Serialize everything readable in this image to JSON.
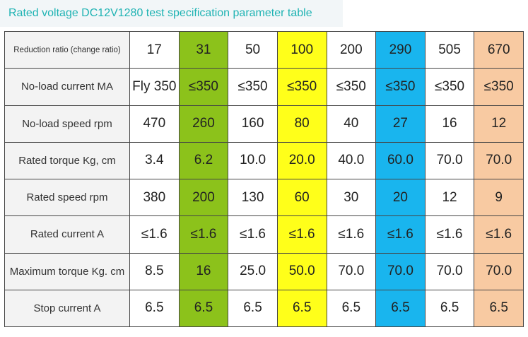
{
  "title": "Rated voltage DC12V1280 test specification parameter table",
  "table": {
    "rows": [
      {
        "label": "Reduction ratio (change ratio)",
        "cells": [
          "17",
          "31",
          "50",
          "100",
          "200",
          "290",
          "505",
          "670"
        ]
      },
      {
        "label": "No-load current MA",
        "cells": [
          "Fly 350",
          "≤350",
          "≤350",
          "≤350",
          "≤350",
          "≤350",
          "≤350",
          "≤350"
        ]
      },
      {
        "label": "No-load speed rpm",
        "cells": [
          "470",
          "260",
          "160",
          "80",
          "40",
          "27",
          "16",
          "12"
        ]
      },
      {
        "label": "Rated torque Kg, cm",
        "cells": [
          "3.4",
          "6.2",
          "10.0",
          "20.0",
          "40.0",
          "60.0",
          "70.0",
          "70.0"
        ]
      },
      {
        "label": "Rated speed rpm",
        "cells": [
          "380",
          "200",
          "130",
          "60",
          "30",
          "20",
          "12",
          "9"
        ]
      },
      {
        "label": "Rated current A",
        "cells": [
          "≤1.6",
          "≤1.6",
          "≤1.6",
          "≤1.6",
          "≤1.6",
          "≤1.6",
          "≤1.6",
          "≤1.6"
        ]
      },
      {
        "label": "Maximum torque Kg. cm",
        "cells": [
          "8.5",
          "16",
          "25.0",
          "50.0",
          "70.0",
          "70.0",
          "70.0",
          "70.0"
        ]
      },
      {
        "label": "Stop current A",
        "cells": [
          "6.5",
          "6.5",
          "6.5",
          "6.5",
          "6.5",
          "6.5",
          "6.5",
          "6.5"
        ]
      }
    ]
  }
}
